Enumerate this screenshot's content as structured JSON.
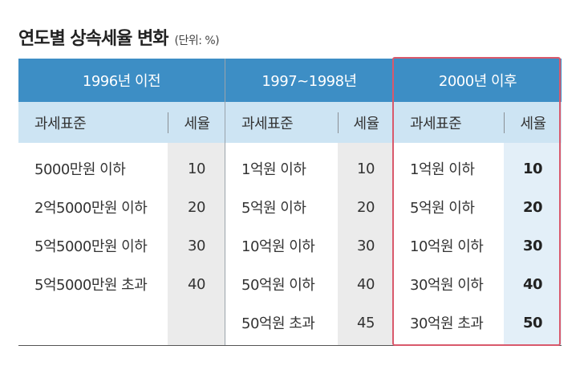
{
  "title": "연도별 상속세율 변화",
  "unit": "(단위: %)",
  "accent_color": "#3d8ec5",
  "highlight_color": "#d9596c",
  "groups": [
    {
      "period": "1996년 이전",
      "col_base": "과세표준",
      "col_rate": "세율",
      "rows": [
        {
          "base": "5000만원 이하",
          "rate": "10"
        },
        {
          "base": "2억5000만원 이하",
          "rate": "20"
        },
        {
          "base": "5억5000만원 이하",
          "rate": "30"
        },
        {
          "base": "5억5000만원 초과",
          "rate": "40"
        }
      ]
    },
    {
      "period": "1997~1998년",
      "col_base": "과세표준",
      "col_rate": "세율",
      "rows": [
        {
          "base": "1억원 이하",
          "rate": "10"
        },
        {
          "base": "5억원 이하",
          "rate": "20"
        },
        {
          "base": "10억원 이하",
          "rate": "30"
        },
        {
          "base": "50억원 이하",
          "rate": "40"
        },
        {
          "base": "50억원 초과",
          "rate": "45"
        }
      ]
    },
    {
      "period": "2000년 이후",
      "col_base": "과세표준",
      "col_rate": "세율",
      "rows": [
        {
          "base": "1억원 이하",
          "rate": "10"
        },
        {
          "base": "5억원 이하",
          "rate": "20"
        },
        {
          "base": "10억원 이하",
          "rate": "30"
        },
        {
          "base": "30억원 이하",
          "rate": "40"
        },
        {
          "base": "30억원 초과",
          "rate": "50"
        }
      ]
    }
  ]
}
